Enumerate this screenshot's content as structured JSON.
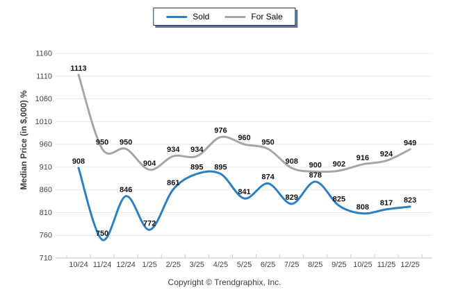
{
  "chart_data": {
    "type": "line",
    "title": "",
    "xlabel": "",
    "ylabel": "Median Price (in $,000) %",
    "categories": [
      "10/24",
      "11/24",
      "12/24",
      "1/25",
      "2/25",
      "3/25",
      "4/25",
      "5/25",
      "6/25",
      "7/25",
      "8/25",
      "9/25",
      "10/25",
      "11/25",
      "12/25"
    ],
    "series": [
      {
        "name": "Sold",
        "color": "#2a80c3",
        "values": [
          908,
          750,
          846,
          772,
          861,
          895,
          895,
          841,
          874,
          829,
          878,
          825,
          808,
          817,
          823
        ]
      },
      {
        "name": "For Sale",
        "color": "#a6a6a6",
        "values": [
          1113,
          950,
          950,
          904,
          934,
          934,
          976,
          960,
          950,
          908,
          900,
          902,
          916,
          924,
          949
        ]
      }
    ],
    "ylim": [
      710,
      1160
    ],
    "ytick_step": 50,
    "grid": true,
    "legend_position": "top",
    "data_labels": true
  },
  "footer": {
    "copyright": "Copyright © Trendgraphix, Inc."
  },
  "style": {
    "grid_color": "#e9e9e9",
    "axis_color": "#c8c8c8",
    "tick_color": "#c4cbd4",
    "tick_label_color": "#444444",
    "data_label_color": "#111111",
    "legend_border_color": "#17375e"
  }
}
